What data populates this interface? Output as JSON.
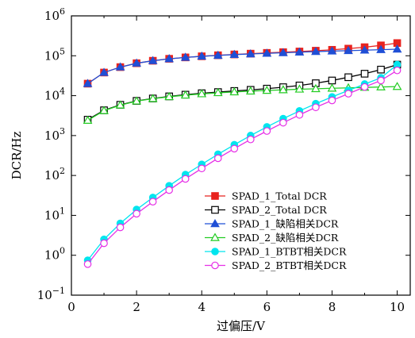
{
  "chart_data": {
    "type": "line",
    "xlabel": "过偏压/V",
    "ylabel": "DCR/Hz",
    "xlim": [
      0,
      10.4
    ],
    "ylim_log10": [
      -1,
      6
    ],
    "y_scale": "log",
    "x_ticks": [
      "0",
      "2",
      "4",
      "6",
      "8",
      "10"
    ],
    "x_tick_values": [
      0,
      2,
      4,
      6,
      8,
      10
    ],
    "y_tick_exponents": [
      -1,
      0,
      1,
      2,
      3,
      4,
      5,
      6
    ],
    "y_tick_base": "10",
    "grid": false,
    "legend_position": "bottom-right",
    "x": [
      0.5,
      1.0,
      1.5,
      2.0,
      2.5,
      3.0,
      3.5,
      4.0,
      4.5,
      5.0,
      5.5,
      6.0,
      6.5,
      7.0,
      7.5,
      8.0,
      8.5,
      9.0,
      9.5,
      10.0
    ],
    "series": [
      {
        "name": "SPAD_1_Total DCR",
        "color": "#e8231f",
        "marker": "square-filled",
        "values": [
          20000,
          38000,
          52000,
          65000,
          75000,
          84000,
          91000,
          97000,
          103000,
          108000,
          113000,
          118000,
          123000,
          128000,
          134000,
          141000,
          151000,
          164000,
          182000,
          208000
        ]
      },
      {
        "name": "SPAD_2_Total DCR",
        "color": "#000000",
        "marker": "square-open",
        "values": [
          2500,
          4300,
          5900,
          7400,
          8500,
          9600,
          10600,
          11500,
          12300,
          13100,
          14000,
          15000,
          16300,
          18000,
          20500,
          24000,
          29000,
          35500,
          45000,
          60000
        ]
      },
      {
        "name": "SPAD_1_缺陷相关DCR",
        "color": "#1f4fd6",
        "marker": "triangle-filled",
        "values": [
          20000,
          38000,
          52000,
          65000,
          75000,
          84000,
          91000,
          97000,
          102000,
          107000,
          111000,
          115000,
          119000,
          123000,
          127000,
          131000,
          134000,
          138000,
          142000,
          146000
        ]
      },
      {
        "name": "SPAD_2_缺陷相关DCR",
        "color": "#22cc22",
        "marker": "triangle-open",
        "values": [
          2400,
          4200,
          5800,
          7300,
          8400,
          9400,
          10300,
          11100,
          11800,
          12400,
          13000,
          13500,
          14000,
          14500,
          14900,
          15300,
          15700,
          16100,
          16500,
          16900
        ]
      },
      {
        "name": "SPAD_1_BTBT相关DCR",
        "color": "#00e5ee",
        "marker": "circle-filled",
        "values": [
          0.75,
          2.5,
          6.3,
          14,
          28,
          55,
          105,
          190,
          340,
          590,
          1000,
          1650,
          2650,
          4150,
          6300,
          9300,
          13500,
          19500,
          28000,
          60000
        ]
      },
      {
        "name": "SPAD_2_BTBT相关DCR",
        "color": "#e62fe6",
        "marker": "circle-open",
        "values": [
          0.6,
          2.0,
          5.0,
          11,
          22,
          43,
          82,
          150,
          270,
          470,
          800,
          1300,
          2100,
          3300,
          5100,
          7600,
          11200,
          16500,
          24000,
          43000
        ]
      }
    ]
  }
}
